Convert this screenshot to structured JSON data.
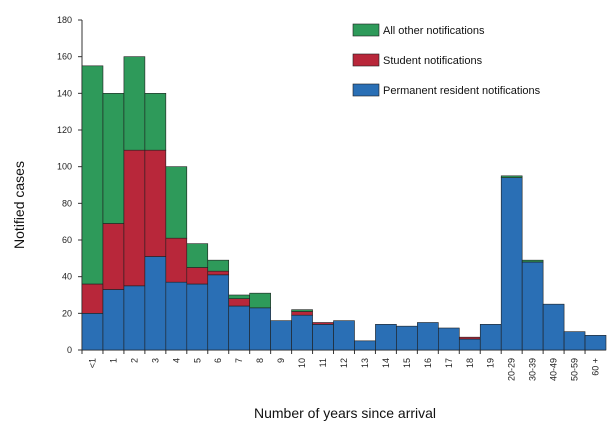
{
  "chart_data": {
    "type": "bar",
    "stacked": true,
    "xlabel": "Number of years since arrival",
    "ylabel": "Notified cases",
    "ylim": [
      0,
      180
    ],
    "yticks": [
      0,
      20,
      40,
      60,
      80,
      100,
      120,
      140,
      160,
      180
    ],
    "categories": [
      "<1",
      "1",
      "2",
      "3",
      "4",
      "5",
      "6",
      "7",
      "8",
      "9",
      "10",
      "11",
      "12",
      "13",
      "14",
      "15",
      "16",
      "17",
      "18",
      "19",
      "20-29",
      "30-39",
      "40-49",
      "50-59",
      "60 +"
    ],
    "series": [
      {
        "name": "Permanent resident notifications",
        "color": "#2a6fb5",
        "values": [
          20,
          33,
          35,
          51,
          37,
          36,
          41,
          24,
          23,
          16,
          19,
          14,
          16,
          5,
          14,
          13,
          15,
          12,
          6,
          14,
          94,
          48,
          25,
          10,
          8
        ]
      },
      {
        "name": "Student notifications",
        "color": "#b8273a",
        "values": [
          16,
          36,
          74,
          58,
          24,
          9,
          2,
          4,
          0,
          0,
          2,
          1,
          0,
          0,
          0,
          0,
          0,
          0,
          1,
          0,
          0,
          0,
          0,
          0,
          0
        ]
      },
      {
        "name": "All other notifications",
        "color": "#2e9a5a",
        "values": [
          119,
          71,
          51,
          31,
          39,
          13,
          6,
          2,
          8,
          0,
          1,
          0,
          0,
          0,
          0,
          0,
          0,
          0,
          0,
          0,
          1,
          1,
          0,
          0,
          0
        ]
      }
    ],
    "legend": {
      "position": "top-right",
      "entries": [
        "All other notifications",
        "Student notifications",
        "Permanent resident notifications"
      ]
    },
    "grid": false
  }
}
